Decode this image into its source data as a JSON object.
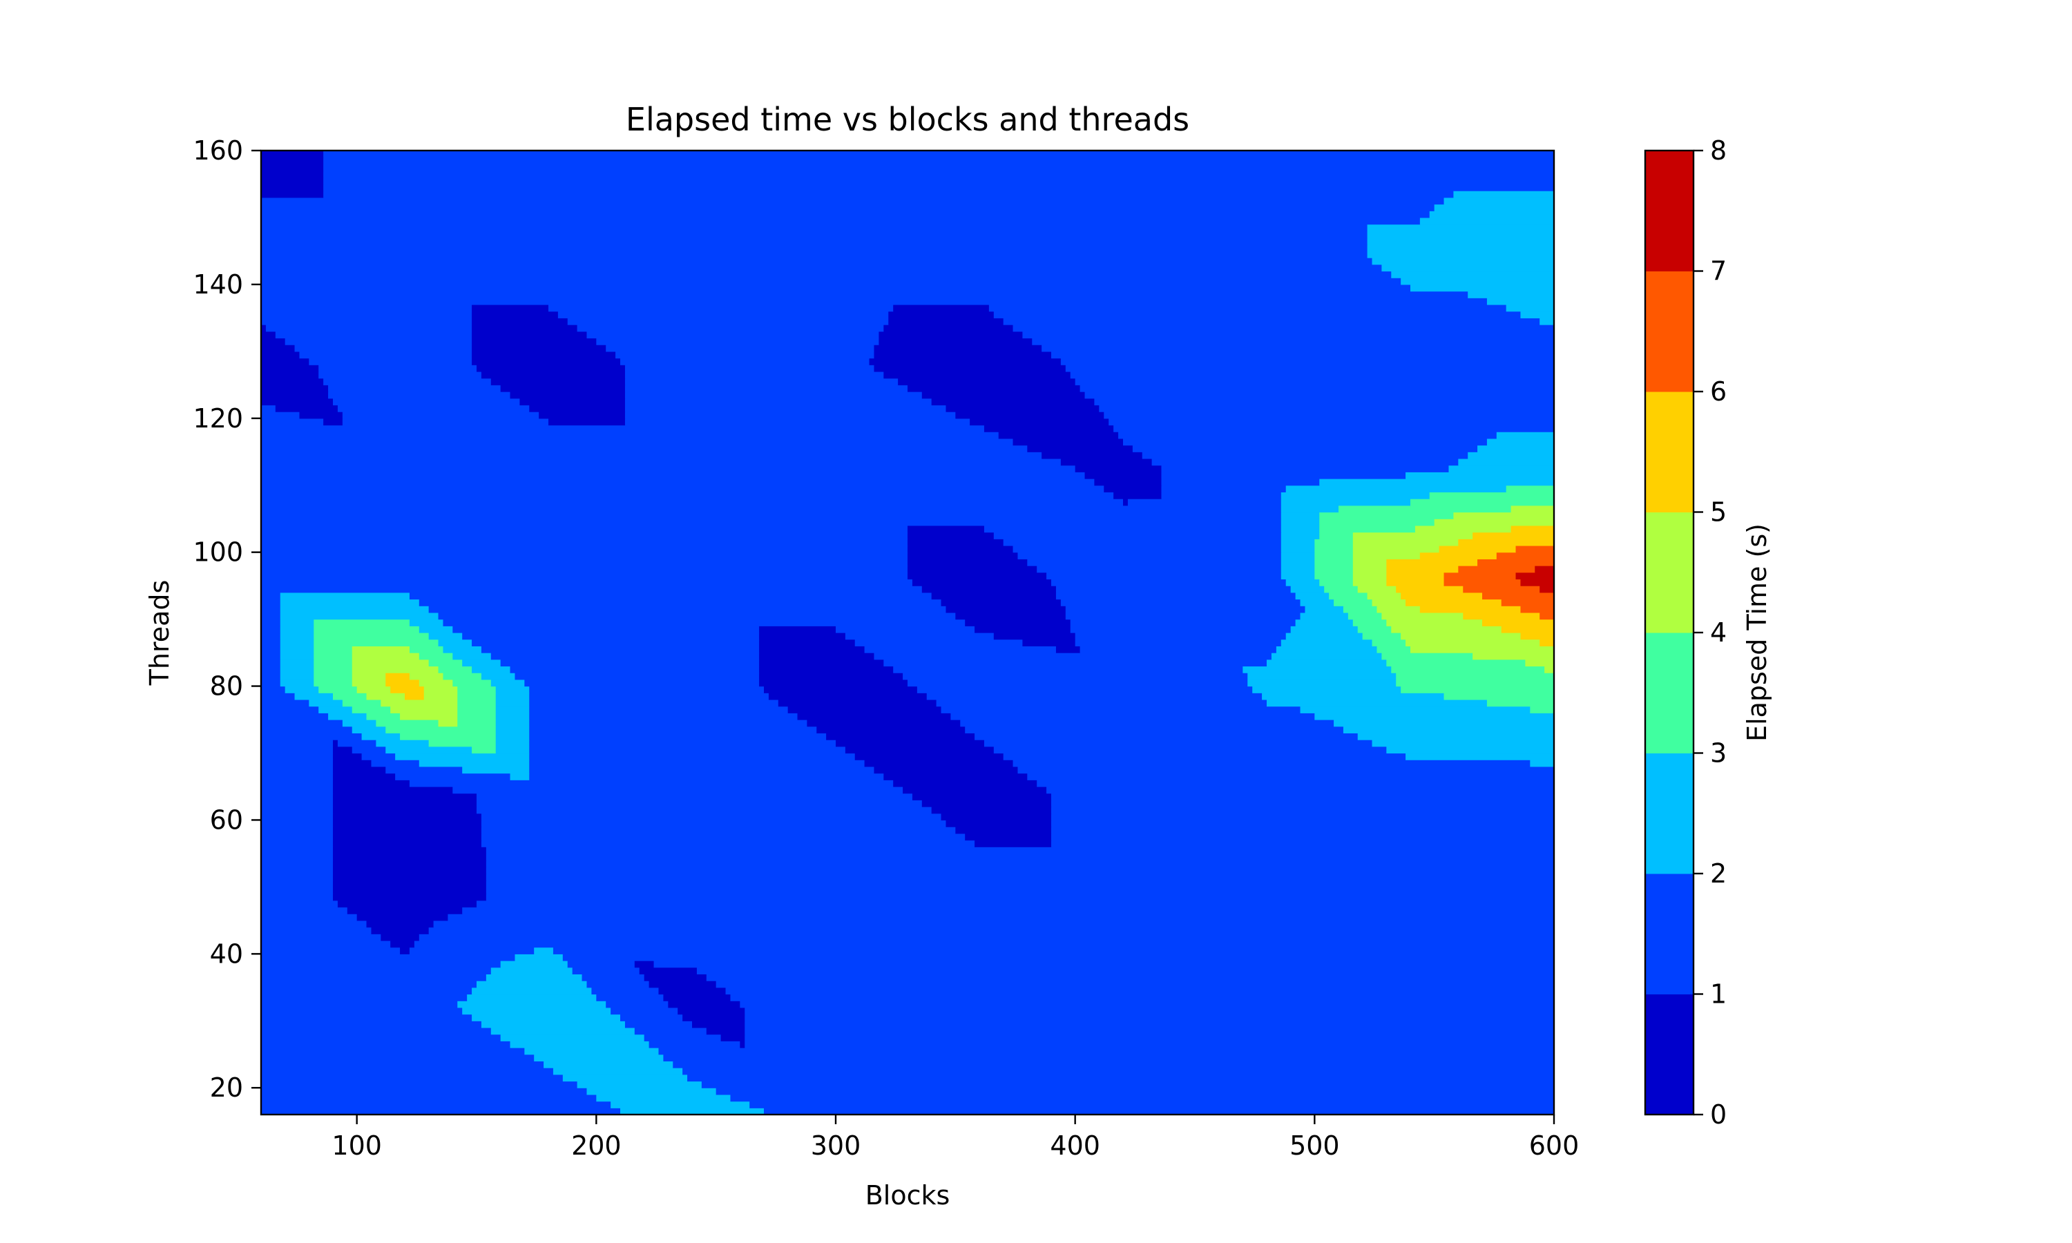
{
  "chart_data": {
    "type": "heatmap",
    "subtype": "filled-contour",
    "title": "Elapsed time vs blocks and threads",
    "xlabel": "Blocks",
    "ylabel": "Threads",
    "xlim": [
      60,
      600
    ],
    "ylim": [
      16,
      160
    ],
    "xticks": [
      100,
      200,
      300,
      400,
      500,
      600
    ],
    "yticks": [
      20,
      40,
      60,
      80,
      100,
      120,
      140,
      160
    ],
    "x": [
      60,
      120,
      180,
      240,
      300,
      360,
      420,
      480,
      540,
      600
    ],
    "y": [
      16,
      32,
      48,
      64,
      80,
      96,
      112,
      128,
      144,
      160
    ],
    "z": [
      [
        1.5,
        1.3,
        1.3,
        2.6,
        1.5,
        1.5,
        1.4,
        1.5,
        1.5,
        1.5
      ],
      [
        1.5,
        1.5,
        2.9,
        0.7,
        1.5,
        1.5,
        1.5,
        1.5,
        1.5,
        1.5
      ],
      [
        1.5,
        0.5,
        1.4,
        1.5,
        1.5,
        1.5,
        1.5,
        1.5,
        1.5,
        1.5
      ],
      [
        1.5,
        0.5,
        1.5,
        1.5,
        1.5,
        0.5,
        1.5,
        1.5,
        1.5,
        1.5
      ],
      [
        1.5,
        5.5,
        1.5,
        1.5,
        0.4,
        1.5,
        1.2,
        2.1,
        3.1,
        3.5
      ],
      [
        1.5,
        1.5,
        1.5,
        1.5,
        1.5,
        0.5,
        1.5,
        1.6,
        5.7,
        7.6
      ],
      [
        1.5,
        1.2,
        1.5,
        1.5,
        1.5,
        1.5,
        0.8,
        1.5,
        1.9,
        2.3
      ],
      [
        0.7,
        1.5,
        0.4,
        1.5,
        1.2,
        0.3,
        1.5,
        1.5,
        1.5,
        1.5
      ],
      [
        1.5,
        1.5,
        1.5,
        1.5,
        1.5,
        1.5,
        1.5,
        1.5,
        2.2,
        2.9
      ],
      [
        0.6,
        1.5,
        1.5,
        1.2,
        1.5,
        1.5,
        1.5,
        1.5,
        1.5,
        1.5
      ]
    ],
    "levels": [
      0,
      1,
      2,
      3,
      4,
      5,
      6,
      7,
      8
    ],
    "colorbar": {
      "label": "Elapsed Time (s)",
      "ticks": [
        0,
        1,
        2,
        3,
        4,
        5,
        6,
        7,
        8
      ],
      "colors": [
        "#0000cc",
        "#0040ff",
        "#00bfff",
        "#40ffa0",
        "#b0ff40",
        "#ffd000",
        "#ff5800",
        "#c80000"
      ]
    },
    "colormap": "jet",
    "grid": false
  }
}
